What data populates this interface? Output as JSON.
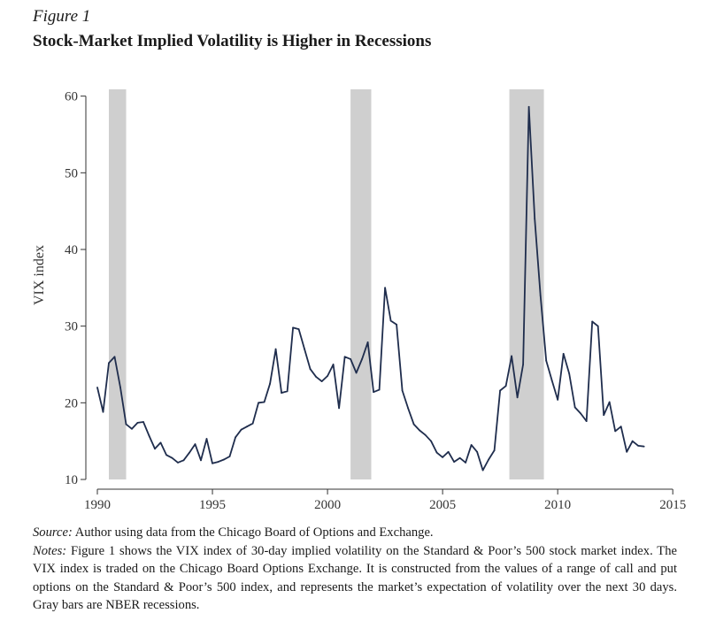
{
  "figure_label": "Figure 1",
  "figure_title": "Stock-Market Implied Volatility is Higher in Recessions",
  "source_label": "Source:",
  "source_text": "Author using data from the Chicago Board of Options and Exchange.",
  "notes_label": "Notes:",
  "notes_text": "Figure 1 shows the VIX index of 30-day implied volatility on the Standard & Poor’s 500 stock market index. The VIX index is traded on the Chicago Board Options Exchange. It is constructed from the values of a range of call and put options on the Standard & Poor’s 500 index, and represents the market’s expectation of volatility over the next 30 days. Gray bars are NBER recessions.",
  "chart_data": {
    "type": "line",
    "title": "Stock-Market Implied Volatility is Higher in Recessions",
    "xlabel": "",
    "ylabel": "VIX index",
    "xlim": [
      1989.5,
      2015.3
    ],
    "ylim": [
      10,
      61
    ],
    "x_ticks": [
      1990,
      1995,
      2000,
      2005,
      2010,
      2015
    ],
    "y_ticks": [
      10,
      20,
      30,
      40,
      50,
      60
    ],
    "recessions": [
      [
        1990.5,
        1991.25
      ],
      [
        2001.0,
        2001.9
      ],
      [
        2007.9,
        2009.4
      ]
    ],
    "colors": {
      "line": "#1f2d4d",
      "recession": "#cfcfcf",
      "axis": "#333333"
    },
    "series": [
      {
        "name": "VIX index",
        "x": [
          1990.0,
          1990.25,
          1990.5,
          1990.75,
          1991.0,
          1991.25,
          1991.5,
          1991.75,
          1992.0,
          1992.25,
          1992.5,
          1992.75,
          1993.0,
          1993.25,
          1993.5,
          1993.75,
          1994.0,
          1994.25,
          1994.5,
          1994.75,
          1995.0,
          1995.25,
          1995.5,
          1995.75,
          1996.0,
          1996.25,
          1996.5,
          1996.75,
          1997.0,
          1997.25,
          1997.5,
          1997.75,
          1998.0,
          1998.25,
          1998.5,
          1998.75,
          1999.0,
          1999.25,
          1999.5,
          1999.75,
          2000.0,
          2000.25,
          2000.5,
          2000.75,
          2001.0,
          2001.25,
          2001.5,
          2001.75,
          2002.0,
          2002.25,
          2002.5,
          2002.75,
          2003.0,
          2003.25,
          2003.5,
          2003.75,
          2004.0,
          2004.25,
          2004.5,
          2004.75,
          2005.0,
          2005.25,
          2005.5,
          2005.75,
          2006.0,
          2006.25,
          2006.5,
          2006.75,
          2007.0,
          2007.25,
          2007.5,
          2007.75,
          2008.0,
          2008.25,
          2008.5,
          2008.75,
          2009.0,
          2009.25,
          2009.5,
          2009.75,
          2010.0,
          2010.25,
          2010.5,
          2010.75,
          2011.0,
          2011.25,
          2011.5,
          2011.75,
          2012.0,
          2012.25,
          2012.5,
          2012.75,
          2013.0,
          2013.25,
          2013.5,
          2013.75
        ],
        "values": [
          22.0,
          18.8,
          25.2,
          26.0,
          22.0,
          17.2,
          16.6,
          17.4,
          17.5,
          15.7,
          14.0,
          14.8,
          13.2,
          12.8,
          12.2,
          12.5,
          13.5,
          14.6,
          12.5,
          15.3,
          12.1,
          12.3,
          12.6,
          13.0,
          15.5,
          16.5,
          16.9,
          17.3,
          20.0,
          20.1,
          22.5,
          27.0,
          21.3,
          21.5,
          29.8,
          29.6,
          27.0,
          24.4,
          23.4,
          22.8,
          23.5,
          25.0,
          19.3,
          26.0,
          25.7,
          23.9,
          25.7,
          27.9,
          21.4,
          21.7,
          35.0,
          30.7,
          30.2,
          21.6,
          19.3,
          17.2,
          16.4,
          15.8,
          15.0,
          13.5,
          12.9,
          13.6,
          12.3,
          12.8,
          12.2,
          14.5,
          13.6,
          11.2,
          12.6,
          13.8,
          21.6,
          22.2,
          26.1,
          20.7,
          25.0,
          58.6,
          44.0,
          34.0,
          25.5,
          22.9,
          20.4,
          26.4,
          23.8,
          19.4,
          18.6,
          17.6,
          30.6,
          30.0,
          18.4,
          20.1,
          16.3,
          16.9,
          13.6,
          15.0,
          14.4,
          14.3
        ]
      }
    ]
  }
}
